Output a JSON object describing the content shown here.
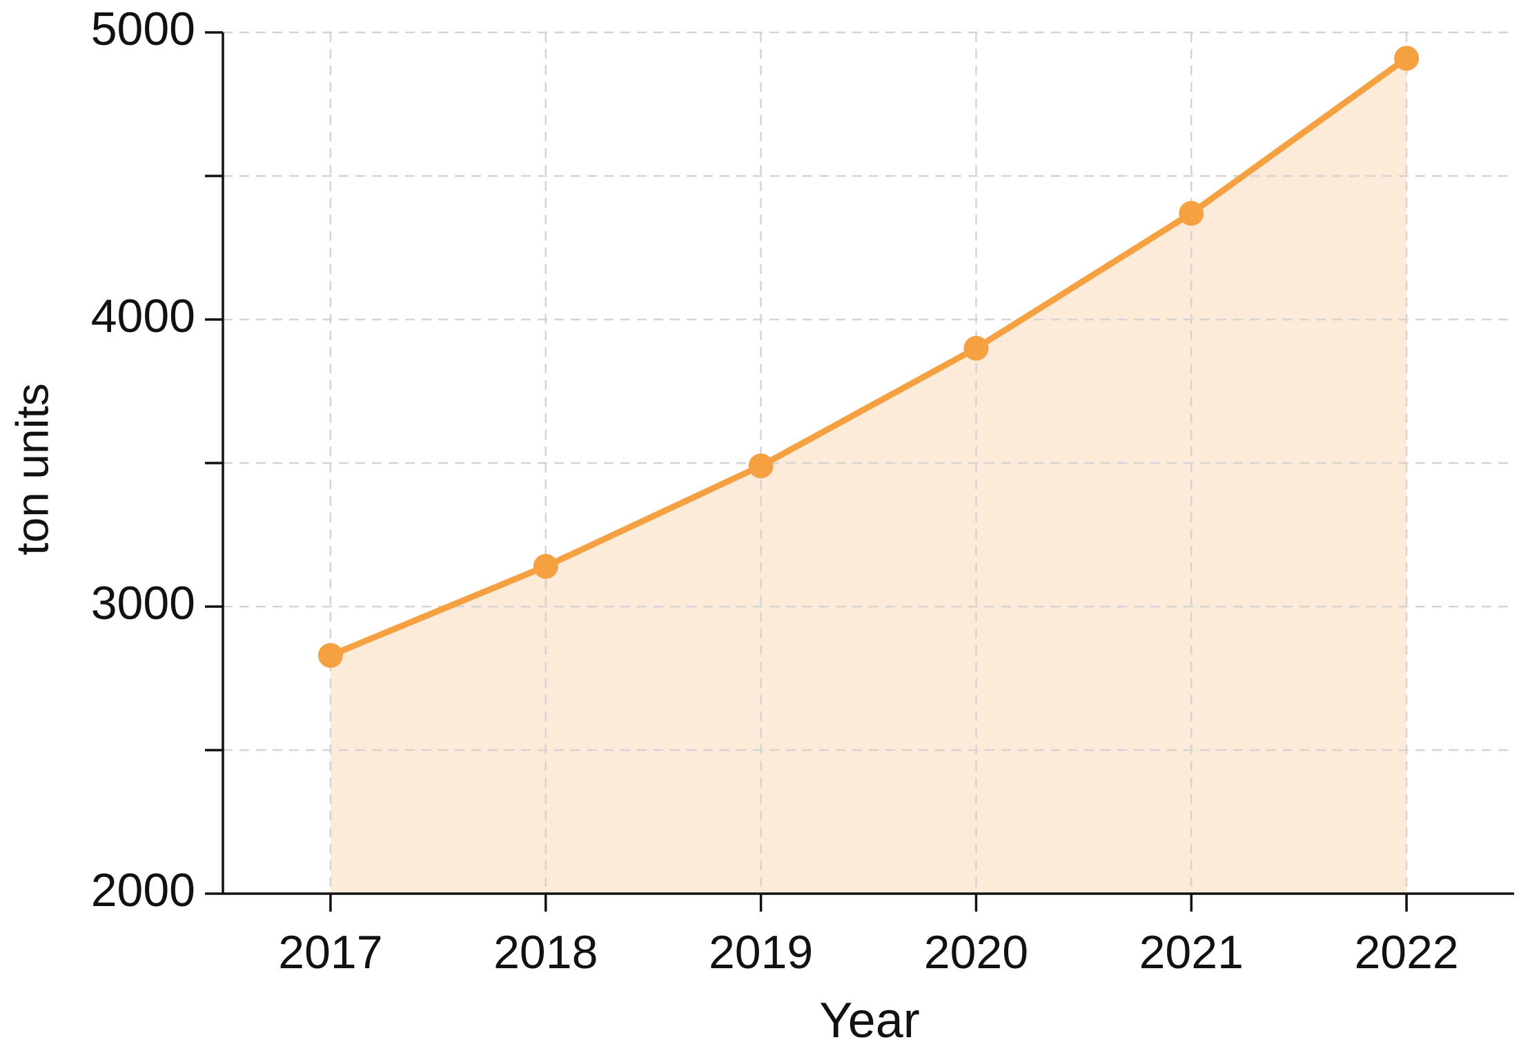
{
  "chart_data": {
    "type": "line",
    "x_label": "Year",
    "y_label": "ton units",
    "x": [
      2017,
      2018,
      2019,
      2020,
      2021,
      2022
    ],
    "values": [
      2830,
      3140,
      3490,
      3900,
      4370,
      4910
    ],
    "color": "#f5a142",
    "area_color": "#fdebd9",
    "xlim": [
      2016.5,
      2022.5
    ],
    "xticks": [
      2017,
      2018,
      2019,
      2020,
      2021,
      2022
    ],
    "ylim": [
      2000,
      5000
    ],
    "yticks": [
      2000,
      3000,
      4000,
      5000
    ],
    "yticks_minor": [
      2500,
      3500,
      4500
    ],
    "grid": true,
    "area": true
  }
}
